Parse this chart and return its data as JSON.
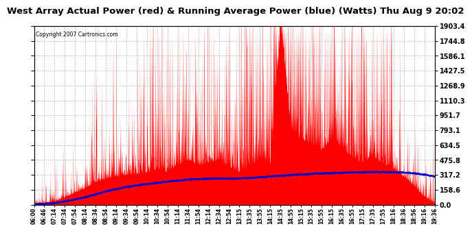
{
  "title": "West Array Actual Power (red) & Running Average Power (blue) (Watts) Thu Aug 9 20:02",
  "copyright": "Copyright 2007 Cartronics.com",
  "title_fontsize": 9.5,
  "background_color": "#ffffff",
  "ymin": 0.0,
  "ymax": 1903.4,
  "ytick_values": [
    0.0,
    158.6,
    317.2,
    475.8,
    634.5,
    793.1,
    951.7,
    1110.3,
    1268.9,
    1427.5,
    1586.1,
    1744.8,
    1903.4
  ],
  "x_labels": [
    "06:00",
    "06:46",
    "07:14",
    "07:34",
    "07:54",
    "08:14",
    "08:34",
    "08:54",
    "09:14",
    "09:34",
    "09:54",
    "10:14",
    "10:34",
    "10:54",
    "11:14",
    "11:34",
    "11:54",
    "12:14",
    "12:34",
    "12:54",
    "13:15",
    "13:35",
    "13:55",
    "14:15",
    "14:35",
    "14:55",
    "15:15",
    "15:35",
    "15:55",
    "16:15",
    "16:35",
    "16:55",
    "17:15",
    "17:35",
    "17:55",
    "18:16",
    "18:36",
    "18:56",
    "19:16",
    "19:36"
  ],
  "actual_color": "#ff0000",
  "avg_color": "#0000cc",
  "line_width": 1.5,
  "grid_color": "#aaaaaa"
}
